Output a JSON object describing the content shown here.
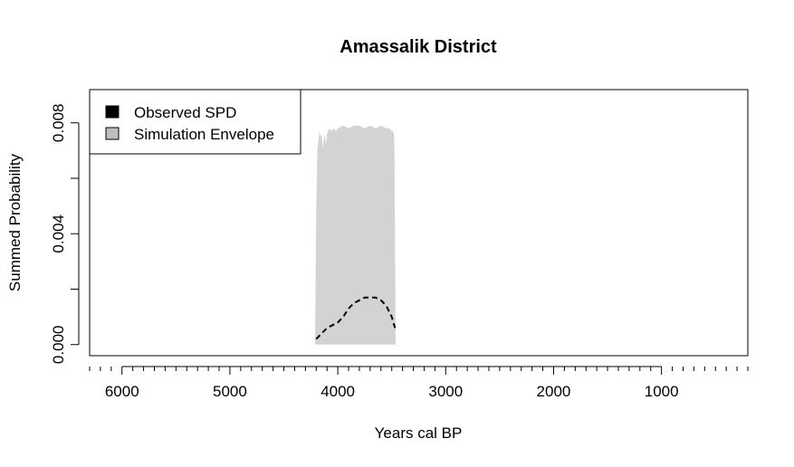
{
  "chart_data": {
    "type": "area",
    "title": "Amassalik District",
    "xlabel": "Years cal BP",
    "ylabel": "Summed Probability",
    "xlim": [
      6300,
      200
    ],
    "ylim": [
      -0.0004,
      0.0092
    ],
    "x_reversed": true,
    "x_ticks_labeled": [
      6000,
      5000,
      4000,
      3000,
      2000,
      1000
    ],
    "x_tick_labels": [
      "6000",
      "5000",
      "4000",
      "3000",
      "2000",
      "1000"
    ],
    "x_minor_step": 100,
    "y_ticks_labeled": [
      0.0,
      0.004,
      0.008
    ],
    "y_tick_labels": [
      "0.000",
      "0.004",
      "0.008"
    ],
    "y_minor_ticks": [
      0.002,
      0.006
    ],
    "grid": false,
    "legend": {
      "placement": "top-left",
      "entries": [
        {
          "label": "Observed SPD",
          "color": "#000000"
        },
        {
          "label": "Simulation Envelope",
          "color": "#bebebe"
        }
      ]
    },
    "series": [
      {
        "name": "Simulation Envelope",
        "kind": "envelope",
        "color": "#d3d3d3",
        "x": [
          4210,
          4200,
          4190,
          4180,
          4170,
          4160,
          4150,
          4140,
          4130,
          4120,
          4110,
          4100,
          4080,
          4060,
          4040,
          4020,
          4000,
          3950,
          3900,
          3850,
          3800,
          3750,
          3700,
          3650,
          3600,
          3550,
          3520,
          3500,
          3490,
          3480,
          3475,
          3470,
          3465
        ],
        "lo": [
          0.0,
          0.0,
          0.0,
          0.0,
          0.0,
          0.0,
          0.0,
          0.0,
          0.0,
          0.0,
          0.0,
          0.0,
          0.0,
          0.0,
          0.0,
          0.0,
          0.0,
          0.0,
          0.0,
          0.0,
          0.0,
          0.0,
          0.0,
          0.0,
          0.0,
          0.0,
          0.0,
          0.0,
          0.0,
          0.0,
          0.0,
          0.0,
          0.0
        ],
        "hi": [
          0.0005,
          0.005,
          0.007,
          0.0074,
          0.0077,
          0.0075,
          0.0076,
          0.0071,
          0.0074,
          0.0076,
          0.0072,
          0.0076,
          0.0078,
          0.0077,
          0.0078,
          0.0077,
          0.0078,
          0.0079,
          0.0078,
          0.0079,
          0.0079,
          0.0078,
          0.0079,
          0.0078,
          0.0079,
          0.0078,
          0.0078,
          0.0077,
          0.0077,
          0.0076,
          0.007,
          0.004,
          0.0005
        ]
      },
      {
        "name": "Observed SPD",
        "kind": "line",
        "color": "#000000",
        "dash": true,
        "x": [
          4200,
          4150,
          4100,
          4050,
          4000,
          3950,
          3900,
          3850,
          3800,
          3750,
          3700,
          3650,
          3600,
          3550,
          3500,
          3470
        ],
        "values": [
          0.0002,
          0.0004,
          0.0006,
          0.0007,
          0.0008,
          0.001,
          0.0013,
          0.0015,
          0.0016,
          0.0017,
          0.0017,
          0.0017,
          0.0016,
          0.0014,
          0.001,
          0.0006
        ]
      }
    ]
  }
}
